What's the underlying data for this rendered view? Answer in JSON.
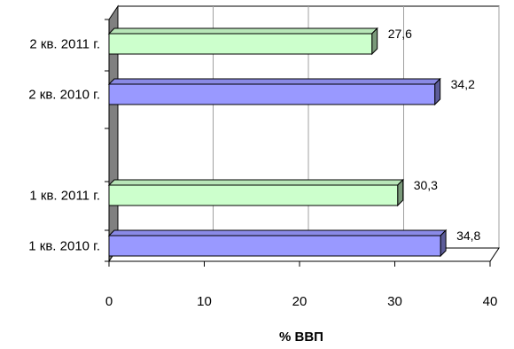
{
  "chart_data": {
    "type": "bar",
    "orientation": "horizontal",
    "three_d": true,
    "categories": [
      "1 кв. 2010 г.",
      "1 кв. 2011 г.",
      "2 кв. 2010 г.",
      "2 кв. 2011 г."
    ],
    "values": [
      34.8,
      30.3,
      34.2,
      27.6
    ],
    "data_labels": [
      "34,8",
      "30,3",
      "34,2",
      "27,6"
    ],
    "xlabel": "% ВВП",
    "xlim": [
      0,
      40
    ],
    "x_ticks": [
      "0",
      "10",
      "20",
      "30",
      "40"
    ],
    "grid": true,
    "legend": "none",
    "colors": {
      "year_2010": "#9999ff",
      "year_2011": "#ccffcc",
      "wall": "#808080"
    }
  }
}
